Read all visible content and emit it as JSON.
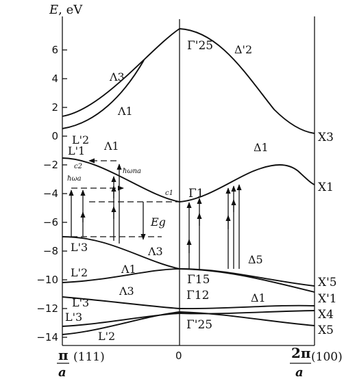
{
  "axis": {
    "y_title_italic": "E",
    "y_title_unit": ", eV",
    "y_ticks": [
      "6",
      "4",
      "2",
      "0",
      "−2",
      "−4",
      "−6",
      "−8",
      "−10",
      "−12",
      "−14"
    ],
    "x_center": "0",
    "x_left_num": "π",
    "x_left_den": "a",
    "x_left_dir": "(111)",
    "x_right_num": "2π",
    "x_right_den": "a",
    "x_right_dir": "(100)"
  },
  "labels": {
    "lambda3_top": "Λ3",
    "lambda1_top": "Λ1",
    "L2p_top": "L'2",
    "L1p": "L'1",
    "lambda1_mid": "Λ1",
    "gamma25p_top": "Γ'25",
    "delta2p": "Δ'2",
    "X3": "X3",
    "delta1_right": "Δ1",
    "X1": "X1",
    "gamma1": "Γ1",
    "c1": "c1",
    "c2": "c2",
    "hw_na": "ħωna",
    "hw_a": "ħωa",
    "Eg": "Eg",
    "L3p_mid": "L'3",
    "lambda3_mid": "Λ3",
    "delta5": "Δ5",
    "L2p_bottom": "L'2",
    "lambda1_low": "Λ1",
    "gamma15": "Γ15",
    "X5p": "X'5",
    "lambda3_low": "Λ3",
    "gamma12": "Γ12",
    "delta1_low": "Δ1",
    "X1p": "X'1",
    "L3p_low": "L'3",
    "X4": "X4",
    "L3p_bottom": "L'3",
    "gamma25p_bottom": "Γ'25",
    "X5": "X5",
    "L2p_lowest": "L'2"
  }
}
